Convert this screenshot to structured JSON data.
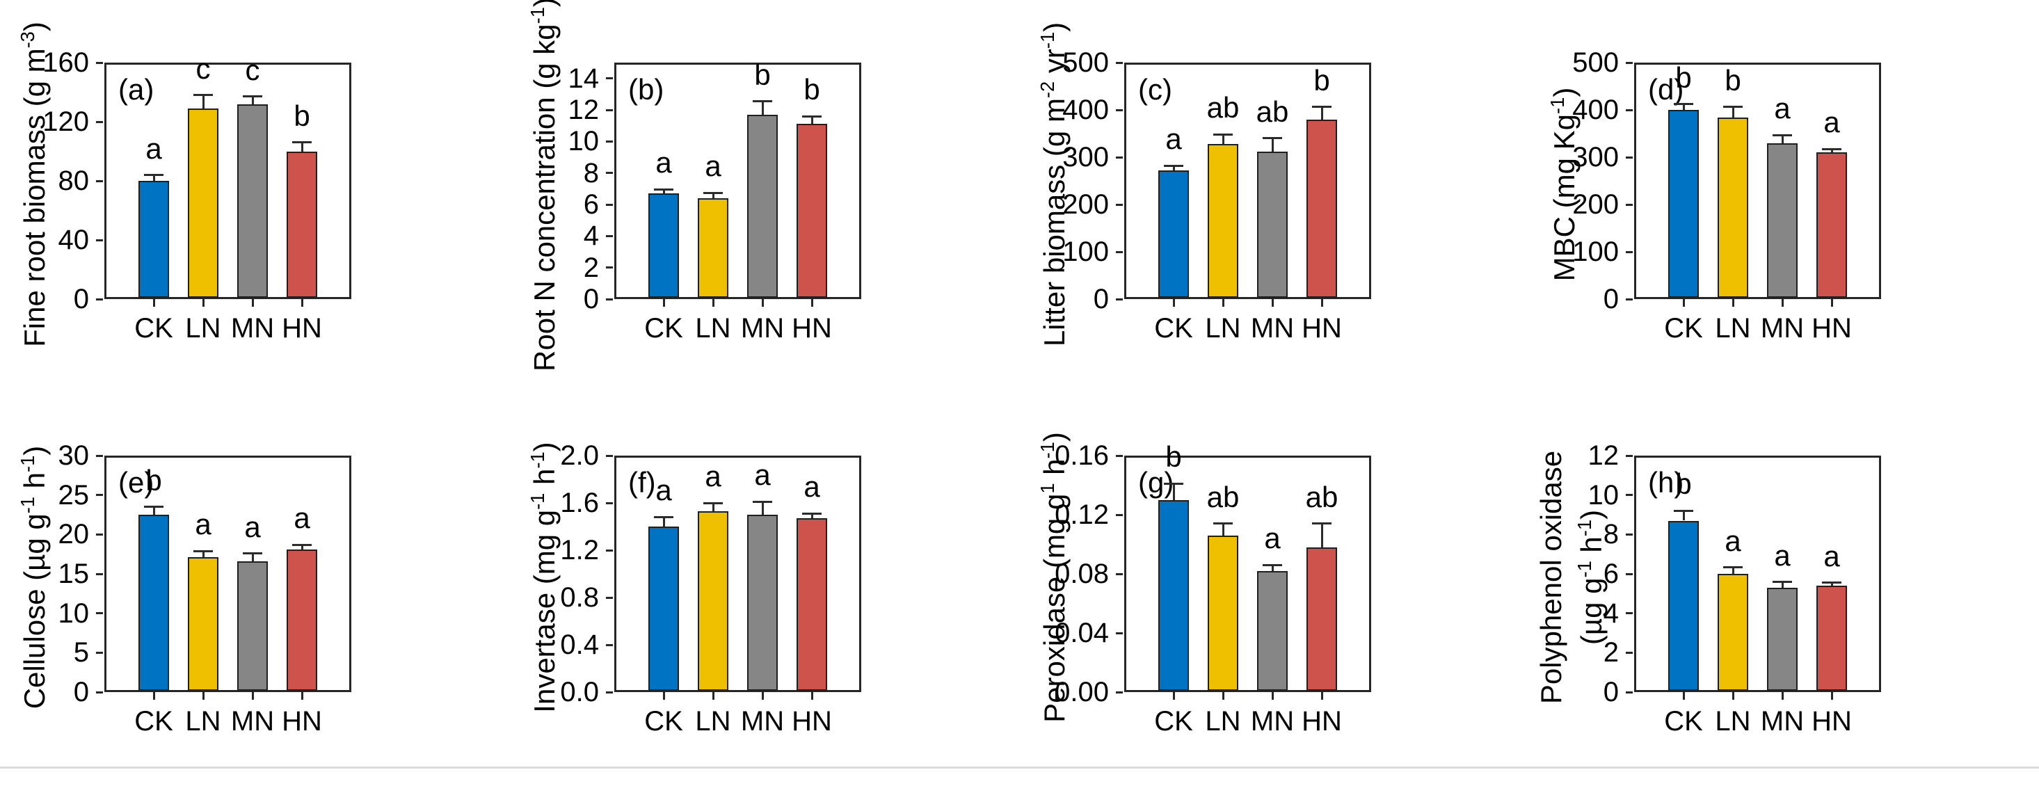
{
  "figure": {
    "background": "#ffffff",
    "axis_color": "#262626",
    "categories": [
      "CK",
      "LN",
      "MN",
      "HN"
    ],
    "bar_colors": [
      "#0073C2",
      "#EFC000",
      "#868686",
      "#CD534C"
    ]
  },
  "chart_data": [
    {
      "id": "a",
      "type": "bar",
      "panel_label": "(a)",
      "ylabel": "Fine root biomass (g m^-3)",
      "categories": [
        "CK",
        "LN",
        "MN",
        "HN"
      ],
      "values": [
        80,
        129,
        132,
        100
      ],
      "errors": [
        4,
        9,
        5,
        6
      ],
      "letters": [
        "a",
        "c",
        "c",
        "b"
      ],
      "ylim": [
        0,
        160
      ],
      "yticks": [
        0,
        40,
        80,
        120,
        160
      ],
      "ytick_labels": [
        "0",
        "40",
        "80",
        "120",
        "160"
      ]
    },
    {
      "id": "b",
      "type": "bar",
      "panel_label": "(b)",
      "ylabel": "Root N concentration (g kg^-1)",
      "categories": [
        "CK",
        "LN",
        "MN",
        "HN"
      ],
      "values": [
        6.7,
        6.4,
        11.7,
        11.1
      ],
      "errors": [
        0.25,
        0.33,
        0.85,
        0.5
      ],
      "letters": [
        "a",
        "a",
        "b",
        "b"
      ],
      "ylim": [
        0,
        15
      ],
      "yticks": [
        0,
        2,
        4,
        6,
        8,
        10,
        12,
        14
      ],
      "ytick_labels": [
        "0",
        "2",
        "4",
        "6",
        "8",
        "10",
        "12",
        "14"
      ]
    },
    {
      "id": "c",
      "type": "bar",
      "panel_label": "(c)",
      "ylabel": "Litter biomass (g m^-2 yr^-1)",
      "categories": [
        "CK",
        "LN",
        "MN",
        "HN"
      ],
      "values": [
        272,
        328,
        312,
        380
      ],
      "errors": [
        10,
        20,
        28,
        26
      ],
      "letters": [
        "a",
        "ab",
        "ab",
        "b"
      ],
      "ylim": [
        0,
        500
      ],
      "yticks": [
        0,
        100,
        200,
        300,
        400,
        500
      ],
      "ytick_labels": [
        "0",
        "100",
        "200",
        "300",
        "400",
        "500"
      ]
    },
    {
      "id": "d",
      "type": "bar",
      "panel_label": "(d)",
      "ylabel": "MBC (mg Kg^-1)",
      "categories": [
        "CK",
        "LN",
        "MN",
        "HN"
      ],
      "values": [
        400,
        384,
        330,
        310
      ],
      "errors": [
        12,
        22,
        17,
        7
      ],
      "letters": [
        "b",
        "b",
        "a",
        "a"
      ],
      "ylim": [
        0,
        500
      ],
      "yticks": [
        0,
        100,
        200,
        300,
        400,
        500
      ],
      "ytick_labels": [
        "0",
        "100",
        "200",
        "300",
        "400",
        "500"
      ]
    },
    {
      "id": "e",
      "type": "bar",
      "panel_label": "(e)",
      "ylabel": "Cellulose (µg g^-1 h^-1)",
      "categories": [
        "CK",
        "LN",
        "MN",
        "HN"
      ],
      "values": [
        22.5,
        17.1,
        16.6,
        18.1
      ],
      "errors": [
        1.0,
        0.8,
        1.0,
        0.6
      ],
      "letters": [
        "b",
        "a",
        "a",
        "a"
      ],
      "ylim": [
        0,
        30
      ],
      "yticks": [
        0,
        5,
        10,
        15,
        20,
        25,
        30
      ],
      "ytick_labels": [
        "0",
        "5",
        "10",
        "15",
        "20",
        "25",
        "30"
      ]
    },
    {
      "id": "f",
      "type": "bar",
      "panel_label": "(f)",
      "ylabel": "Invertase (mg g^-1 h^-1)",
      "categories": [
        "CK",
        "LN",
        "MN",
        "HN"
      ],
      "values": [
        1.4,
        1.53,
        1.5,
        1.47
      ],
      "errors": [
        0.08,
        0.07,
        0.11,
        0.04
      ],
      "letters": [
        "a",
        "a",
        "a",
        "a"
      ],
      "ylim": [
        0,
        2.0
      ],
      "yticks": [
        0,
        0.4,
        0.8,
        1.2,
        1.6,
        2.0
      ],
      "ytick_labels": [
        "0.0",
        "0.4",
        "0.8",
        "1.2",
        "1.6",
        "2.0"
      ]
    },
    {
      "id": "g",
      "type": "bar",
      "panel_label": "(g)",
      "ylabel": "Peroxidase (mg g^1 h^-1)",
      "categories": [
        "CK",
        "LN",
        "MN",
        "HN"
      ],
      "values": [
        0.13,
        0.106,
        0.082,
        0.098
      ],
      "errors": [
        0.011,
        0.008,
        0.004,
        0.016
      ],
      "letters": [
        "b",
        "ab",
        "a",
        "ab"
      ],
      "ylim": [
        0,
        0.16
      ],
      "yticks": [
        0,
        0.04,
        0.08,
        0.12,
        0.16
      ],
      "ytick_labels": [
        "0.00",
        "0.04",
        "0.08",
        "0.12",
        "0.16"
      ]
    },
    {
      "id": "h",
      "type": "bar",
      "panel_label": "(h)",
      "ylabel": "Polyphenol oxidase\n(µg g^-1 h^-1)",
      "categories": [
        "CK",
        "LN",
        "MN",
        "HN"
      ],
      "values": [
        8.7,
        6.0,
        5.3,
        5.4
      ],
      "errors": [
        0.5,
        0.33,
        0.29,
        0.15
      ],
      "letters": [
        "b",
        "a",
        "a",
        "a"
      ],
      "ylim": [
        0,
        12
      ],
      "yticks": [
        0,
        2,
        4,
        6,
        8,
        10,
        12
      ],
      "ytick_labels": [
        "0",
        "2",
        "4",
        "6",
        "8",
        "10",
        "12"
      ]
    }
  ]
}
